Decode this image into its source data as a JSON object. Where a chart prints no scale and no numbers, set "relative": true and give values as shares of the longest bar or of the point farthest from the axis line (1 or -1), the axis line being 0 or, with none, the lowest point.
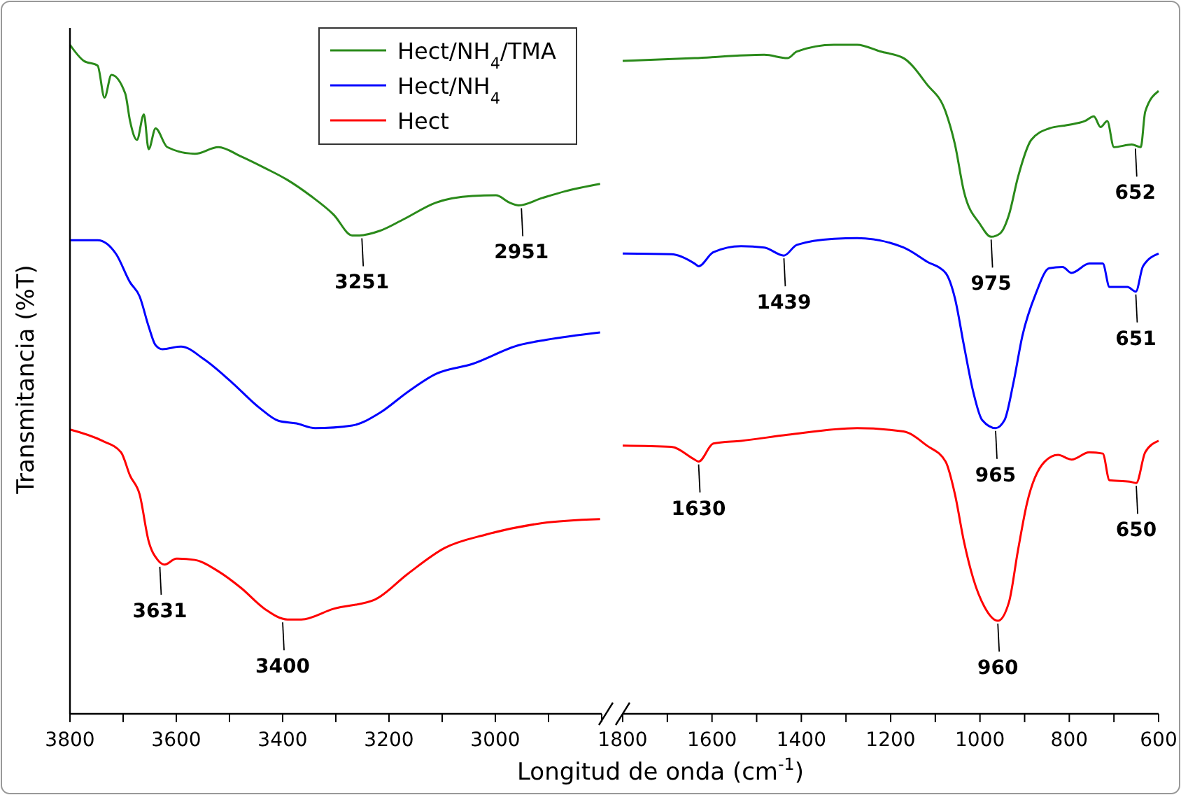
{
  "chart_data": [
    {
      "type": "line",
      "relative": true,
      "ylabel": "Transmitancia (%T)",
      "legend": "top right",
      "tick_labels": "x",
      "xlim": [
        3800,
        2800
      ],
      "xticks": [
        3800,
        {
          "value": 3700,
          "label": null
        },
        3600,
        {
          "value": 3500,
          "label": null
        },
        3400,
        {
          "value": 3300,
          "label": null
        },
        3200,
        {
          "value": 3100,
          "label": null
        },
        3000,
        {
          "value": 2900,
          "label": null
        },
        {
          "value": 2800,
          "label": null
        }
      ],
      "series": [
        {
          "name": "Hect/NH$_{4}$/TMA",
          "color": "#2a8a1a",
          "x": [
            3800,
            3774,
            3748,
            3735,
            3722,
            3696,
            3687,
            3674,
            3661,
            3652,
            3639,
            3617,
            3565,
            3521,
            3478,
            3434,
            3391,
            3347,
            3304,
            3269,
            3256,
            3217,
            3173,
            3112,
            3043,
            2999,
            2973,
            2956,
            2912,
            2869,
            2803
          ],
          "values": [
            1,
            0.976,
            0.969,
            0.921,
            0.955,
            0.927,
            0.886,
            0.858,
            0.896,
            0.844,
            0.875,
            0.847,
            0.837,
            0.847,
            0.833,
            0.816,
            0.798,
            0.774,
            0.746,
            0.715,
            0.715,
            0.722,
            0.739,
            0.764,
            0.774,
            0.775,
            0.764,
            0.76,
            0.771,
            0.781,
            0.792
          ]
        },
        {
          "name": "Hect/NH$_{4}$",
          "color": "#0000ff",
          "x": [
            3800,
            3748,
            3713,
            3687,
            3669,
            3652,
            3639,
            3626,
            3591,
            3548,
            3495,
            3443,
            3408,
            3374,
            3339,
            3269,
            3217,
            3165,
            3112,
            3043,
            2956,
            2904,
            2803
          ],
          "values": [
            0.708,
            0.708,
            0.687,
            0.645,
            0.624,
            0.579,
            0.551,
            0.545,
            0.549,
            0.53,
            0.495,
            0.457,
            0.438,
            0.434,
            0.427,
            0.431,
            0.45,
            0.481,
            0.508,
            0.523,
            0.551,
            0.559,
            0.57
          ]
        },
        {
          "name": "Hect",
          "color": "#ff0000",
          "x": [
            3800,
            3739,
            3704,
            3687,
            3669,
            3652,
            3635,
            3622,
            3600,
            3565,
            3521,
            3478,
            3434,
            3391,
            3365,
            3304,
            3226,
            3165,
            3095,
            3017,
            2912,
            2803
          ],
          "values": [
            0.425,
            0.408,
            0.391,
            0.356,
            0.328,
            0.258,
            0.23,
            0.223,
            0.232,
            0.23,
            0.213,
            0.188,
            0.157,
            0.141,
            0.141,
            0.157,
            0.171,
            0.209,
            0.248,
            0.268,
            0.285,
            0.291
          ]
        }
      ],
      "annotations": [
        {
          "text": "3251",
          "x": 3251,
          "y": 0.715
        },
        {
          "text": "2951",
          "x": 2951,
          "y": 0.76
        },
        {
          "text": "3631",
          "x": 3631,
          "y": 0.224
        },
        {
          "text": "3400",
          "x": 3400,
          "y": 0.141
        }
      ]
    },
    {
      "type": "line",
      "relative": true,
      "xlabel": "Longitud de onda (cm$^{-1}$)",
      "tick_labels": "x",
      "xlim": [
        1800,
        600
      ],
      "xticks": [
        1800,
        {
          "value": 1700,
          "label": null
        },
        1600,
        {
          "value": 1500,
          "label": null
        },
        1400,
        {
          "value": 1300,
          "label": null
        },
        1200,
        {
          "value": 1100,
          "label": null
        },
        1000,
        {
          "value": 900,
          "label": null
        },
        800,
        {
          "value": 700,
          "label": null
        },
        600
      ],
      "series": [
        {
          "color": "#2a8a1a",
          "x": [
            1800,
            1639,
            1483,
            1431,
            1410,
            1327,
            1275,
            1223,
            1171,
            1119,
            1077,
            1056,
            1036,
            1000,
            975,
            955,
            935,
            915,
            885,
            845,
            805,
            765,
            745,
            730,
            715,
            700,
            660,
            640,
            630,
            600
          ],
          "values": [
            0.976,
            0.98,
            0.985,
            0.98,
            0.99,
            1,
            1,
            0.99,
            0.98,
            0.941,
            0.9,
            0.851,
            0.781,
            0.732,
            0.713,
            0.718,
            0.746,
            0.802,
            0.858,
            0.875,
            0.88,
            0.886,
            0.893,
            0.877,
            0.886,
            0.847,
            0.851,
            0.847,
            0.9,
            0.931
          ]
        },
        {
          "color": "#0000ff",
          "x": [
            1800,
            1691,
            1639,
            1630,
            1597,
            1535,
            1483,
            1439,
            1410,
            1327,
            1275,
            1171,
            1119,
            1077,
            1056,
            1036,
            1015,
            995,
            965,
            945,
            925,
            905,
            875,
            845,
            815,
            795,
            755,
            725,
            710,
            670,
            651,
            635,
            600
          ],
          "values": [
            0.688,
            0.687,
            0.673,
            0.669,
            0.69,
            0.699,
            0.697,
            0.685,
            0.701,
            0.71,
            0.711,
            0.697,
            0.676,
            0.659,
            0.621,
            0.551,
            0.481,
            0.439,
            0.427,
            0.439,
            0.495,
            0.565,
            0.628,
            0.666,
            0.668,
            0.659,
            0.673,
            0.673,
            0.638,
            0.638,
            0.631,
            0.669,
            0.688
          ]
        },
        {
          "color": "#ff0000",
          "x": [
            1800,
            1691,
            1639,
            1630,
            1597,
            1535,
            1431,
            1275,
            1171,
            1119,
            1077,
            1056,
            1036,
            1015,
            990,
            960,
            935,
            915,
            895,
            855,
            825,
            795,
            755,
            725,
            710,
            665,
            650,
            630,
            600
          ],
          "values": [
            0.401,
            0.399,
            0.38,
            0.377,
            0.404,
            0.408,
            0.417,
            0.427,
            0.422,
            0.401,
            0.377,
            0.328,
            0.258,
            0.202,
            0.16,
            0.139,
            0.167,
            0.244,
            0.314,
            0.377,
            0.387,
            0.38,
            0.391,
            0.389,
            0.349,
            0.347,
            0.345,
            0.391,
            0.408
          ]
        }
      ],
      "annotations": [
        {
          "text": "975",
          "x": 975,
          "y": 0.713
        },
        {
          "text": "652",
          "x": 652,
          "y": 0.849
        },
        {
          "text": "1439",
          "x": 1439,
          "y": 0.685
        },
        {
          "text": "1630",
          "x": 1630,
          "y": 0.377
        },
        {
          "text": "965",
          "x": 965,
          "y": 0.427
        },
        {
          "text": "651",
          "x": 651,
          "y": 0.631
        },
        {
          "text": "650",
          "x": 650,
          "y": 0.345
        },
        {
          "text": "960",
          "x": 960,
          "y": 0.139
        }
      ]
    }
  ]
}
